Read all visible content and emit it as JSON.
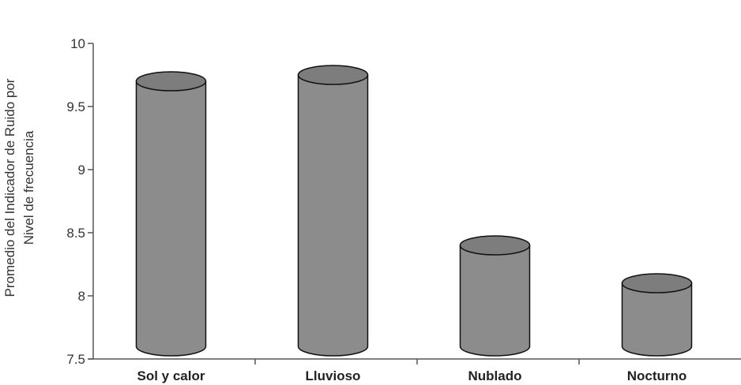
{
  "chart_data": {
    "type": "bar",
    "style": "3d-cylinder",
    "categories": [
      "Sol y calor",
      "Lluvioso",
      "Nublado",
      "Nocturno"
    ],
    "values": [
      9.7,
      9.75,
      8.4,
      8.1
    ],
    "ylabel_lines": [
      "Promedio del  Indicador de  Ruido por",
      "Nivel  de frecuencia"
    ],
    "xlabel": "",
    "ylim": [
      7.5,
      10
    ],
    "yticks": [
      7.5,
      8,
      8.5,
      9,
      9.5,
      10
    ],
    "ytick_labels": [
      "7.5",
      "8",
      "8.5",
      "9",
      "9.5",
      "10"
    ],
    "grid": false,
    "colors": {
      "bar": "#8c8c8c",
      "bar_top": "#7d7d7d",
      "outline": "#111111",
      "axis": "#555555"
    }
  }
}
